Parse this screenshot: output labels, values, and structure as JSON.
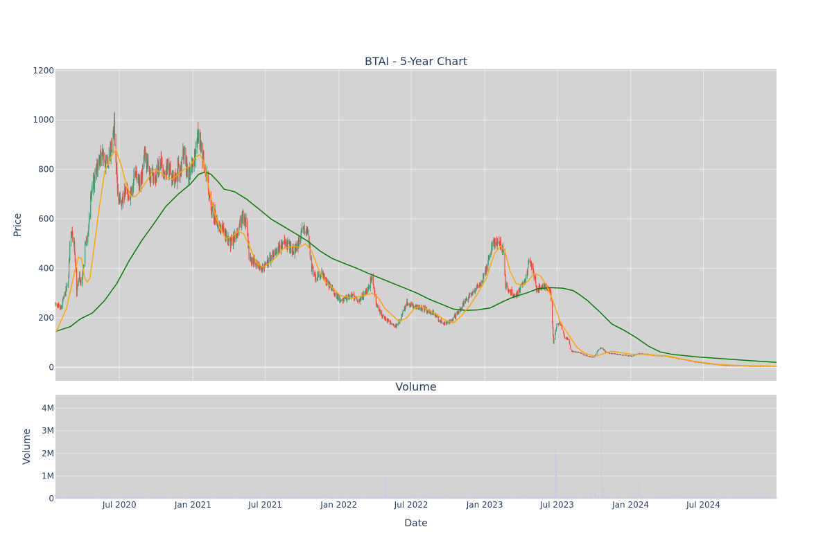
{
  "colors": {
    "plot_bg": "#d3d3d3",
    "grid": "#ebebeb",
    "text": "#2a3f5f",
    "candle_up": "#3d9970",
    "candle_down": "#ff4136",
    "ma_short": "#ffa500",
    "ma_long": "#008000",
    "volume_bar": "#c6c6ee"
  },
  "chart_data": [
    {
      "type": "candlestick",
      "title": "BTAI - 5-Year Chart",
      "ylabel": "Price",
      "ylim": [
        -55,
        1205
      ],
      "yticks": [
        0,
        200,
        400,
        600,
        800,
        1000,
        1200
      ],
      "xlim": [
        "2020-01-23",
        "2024-12-31"
      ],
      "grid": true,
      "close_anchors": [
        [
          "2020-01-24",
          255
        ],
        [
          "2020-02-06",
          240
        ],
        [
          "2020-02-14",
          290
        ],
        [
          "2020-02-24",
          340
        ],
        [
          "2020-03-01",
          560
        ],
        [
          "2020-03-10",
          500
        ],
        [
          "2020-03-16",
          300
        ],
        [
          "2020-03-22",
          380
        ],
        [
          "2020-03-28",
          330
        ],
        [
          "2020-04-06",
          480
        ],
        [
          "2020-04-14",
          560
        ],
        [
          "2020-04-22",
          720
        ],
        [
          "2020-05-02",
          780
        ],
        [
          "2020-05-12",
          840
        ],
        [
          "2020-05-22",
          860
        ],
        [
          "2020-06-01",
          820
        ],
        [
          "2020-06-10",
          880
        ],
        [
          "2020-06-18",
          980
        ],
        [
          "2020-06-26",
          720
        ],
        [
          "2020-07-06",
          650
        ],
        [
          "2020-07-18",
          720
        ],
        [
          "2020-07-28",
          690
        ],
        [
          "2020-08-10",
          780
        ],
        [
          "2020-08-22",
          730
        ],
        [
          "2020-09-03",
          860
        ],
        [
          "2020-09-15",
          780
        ],
        [
          "2020-09-28",
          760
        ],
        [
          "2020-10-10",
          830
        ],
        [
          "2020-10-22",
          790
        ],
        [
          "2020-11-03",
          800
        ],
        [
          "2020-11-15",
          760
        ],
        [
          "2020-12-01",
          820
        ],
        [
          "2020-12-10",
          860
        ],
        [
          "2020-12-20",
          780
        ],
        [
          "2021-01-08",
          860
        ],
        [
          "2021-01-15",
          980
        ],
        [
          "2021-01-20",
          900
        ],
        [
          "2021-01-27",
          820
        ],
        [
          "2021-02-06",
          760
        ],
        [
          "2021-02-15",
          640
        ],
        [
          "2021-02-24",
          620
        ],
        [
          "2021-03-05",
          580
        ],
        [
          "2021-03-20",
          550
        ],
        [
          "2021-04-05",
          500
        ],
        [
          "2021-04-20",
          540
        ],
        [
          "2021-05-05",
          600
        ],
        [
          "2021-05-14",
          590
        ],
        [
          "2021-05-22",
          440
        ],
        [
          "2021-06-10",
          420
        ],
        [
          "2021-06-25",
          400
        ],
        [
          "2021-07-10",
          430
        ],
        [
          "2021-07-25",
          470
        ],
        [
          "2021-08-10",
          490
        ],
        [
          "2021-08-25",
          500
        ],
        [
          "2021-09-10",
          470
        ],
        [
          "2021-09-22",
          500
        ],
        [
          "2021-10-03",
          560
        ],
        [
          "2021-10-15",
          560
        ],
        [
          "2021-10-25",
          400
        ],
        [
          "2021-11-05",
          360
        ],
        [
          "2021-11-20",
          380
        ],
        [
          "2021-12-05",
          340
        ],
        [
          "2021-12-20",
          300
        ],
        [
          "2022-01-05",
          270
        ],
        [
          "2022-01-20",
          280
        ],
        [
          "2022-02-05",
          290
        ],
        [
          "2022-02-20",
          270
        ],
        [
          "2022-03-10",
          300
        ],
        [
          "2022-03-25",
          360
        ],
        [
          "2022-04-05",
          250
        ],
        [
          "2022-04-18",
          210
        ],
        [
          "2022-05-01",
          190
        ],
        [
          "2022-05-15",
          175
        ],
        [
          "2022-05-25",
          165
        ],
        [
          "2022-06-05",
          200
        ],
        [
          "2022-06-20",
          260
        ],
        [
          "2022-07-10",
          250
        ],
        [
          "2022-07-25",
          240
        ],
        [
          "2022-08-10",
          230
        ],
        [
          "2022-08-25",
          220
        ],
        [
          "2022-09-10",
          190
        ],
        [
          "2022-09-25",
          175
        ],
        [
          "2022-10-10",
          190
        ],
        [
          "2022-10-25",
          220
        ],
        [
          "2022-11-10",
          260
        ],
        [
          "2022-11-25",
          290
        ],
        [
          "2022-12-10",
          320
        ],
        [
          "2022-12-25",
          350
        ],
        [
          "2023-01-10",
          430
        ],
        [
          "2023-01-20",
          500
        ],
        [
          "2023-01-30",
          510
        ],
        [
          "2023-02-10",
          490
        ],
        [
          "2023-02-18",
          460
        ],
        [
          "2023-02-22",
          330
        ],
        [
          "2023-03-05",
          310
        ],
        [
          "2023-03-15",
          290
        ],
        [
          "2023-03-25",
          300
        ],
        [
          "2023-04-05",
          340
        ],
        [
          "2023-04-15",
          360
        ],
        [
          "2023-04-22",
          440
        ],
        [
          "2023-05-01",
          400
        ],
        [
          "2023-05-10",
          310
        ],
        [
          "2023-05-20",
          320
        ],
        [
          "2023-05-28",
          330
        ],
        [
          "2023-06-05",
          320
        ],
        [
          "2023-06-15",
          310
        ],
        [
          "2023-06-22",
          100
        ],
        [
          "2023-07-01",
          180
        ],
        [
          "2023-07-10",
          175
        ],
        [
          "2023-07-20",
          120
        ],
        [
          "2023-07-30",
          115
        ],
        [
          "2023-08-05",
          65
        ],
        [
          "2023-08-25",
          60
        ],
        [
          "2023-09-15",
          45
        ],
        [
          "2023-10-01",
          40
        ],
        [
          "2023-10-10",
          65
        ],
        [
          "2023-10-20",
          80
        ],
        [
          "2023-11-01",
          60
        ],
        [
          "2023-11-20",
          55
        ],
        [
          "2023-12-10",
          50
        ],
        [
          "2024-01-05",
          45
        ],
        [
          "2024-01-20",
          55
        ],
        [
          "2024-02-10",
          52
        ],
        [
          "2024-03-01",
          48
        ],
        [
          "2024-04-01",
          45
        ],
        [
          "2024-05-01",
          35
        ],
        [
          "2024-06-01",
          25
        ],
        [
          "2024-07-01",
          18
        ],
        [
          "2024-08-01",
          12
        ],
        [
          "2024-09-01",
          8
        ],
        [
          "2024-10-01",
          7
        ],
        [
          "2024-11-01",
          5
        ],
        [
          "2024-12-31",
          5
        ]
      ],
      "ma_short_anchors": [
        [
          "2020-01-24",
          140
        ],
        [
          "2020-02-20",
          240
        ],
        [
          "2020-03-10",
          380
        ],
        [
          "2020-03-20",
          445
        ],
        [
          "2020-03-28",
          440
        ],
        [
          "2020-04-05",
          360
        ],
        [
          "2020-04-12",
          345
        ],
        [
          "2020-04-18",
          360
        ],
        [
          "2020-04-30",
          500
        ],
        [
          "2020-05-12",
          650
        ],
        [
          "2020-05-25",
          790
        ],
        [
          "2020-06-10",
          850
        ],
        [
          "2020-06-22",
          880
        ],
        [
          "2020-07-05",
          820
        ],
        [
          "2020-07-18",
          740
        ],
        [
          "2020-07-30",
          690
        ],
        [
          "2020-08-10",
          690
        ],
        [
          "2020-08-25",
          720
        ],
        [
          "2020-09-10",
          760
        ],
        [
          "2020-09-25",
          800
        ],
        [
          "2020-10-10",
          790
        ],
        [
          "2020-10-25",
          770
        ],
        [
          "2020-11-10",
          760
        ],
        [
          "2020-11-25",
          780
        ],
        [
          "2020-12-10",
          800
        ],
        [
          "2020-12-25",
          815
        ],
        [
          "2021-01-08",
          850
        ],
        [
          "2021-01-18",
          860
        ],
        [
          "2021-01-28",
          830
        ],
        [
          "2021-02-10",
          720
        ],
        [
          "2021-02-25",
          620
        ],
        [
          "2021-03-10",
          560
        ],
        [
          "2021-03-25",
          520
        ],
        [
          "2021-04-10",
          530
        ],
        [
          "2021-04-25",
          550
        ],
        [
          "2021-05-08",
          540
        ],
        [
          "2021-05-25",
          480
        ],
        [
          "2021-06-10",
          420
        ],
        [
          "2021-06-25",
          405
        ],
        [
          "2021-07-10",
          420
        ],
        [
          "2021-07-25",
          440
        ],
        [
          "2021-08-15",
          480
        ],
        [
          "2021-09-10",
          490
        ],
        [
          "2021-09-25",
          485
        ],
        [
          "2021-10-10",
          500
        ],
        [
          "2021-10-25",
          470
        ],
        [
          "2021-11-10",
          400
        ],
        [
          "2021-11-25",
          350
        ],
        [
          "2021-12-10",
          330
        ],
        [
          "2022-01-05",
          290
        ],
        [
          "2022-02-05",
          280
        ],
        [
          "2022-03-05",
          290
        ],
        [
          "2022-03-25",
          300
        ],
        [
          "2022-04-10",
          280
        ],
        [
          "2022-04-25",
          240
        ],
        [
          "2022-05-15",
          210
        ],
        [
          "2022-06-01",
          185
        ],
        [
          "2022-06-20",
          200
        ],
        [
          "2022-07-10",
          240
        ],
        [
          "2022-07-25",
          245
        ],
        [
          "2022-08-10",
          235
        ],
        [
          "2022-09-05",
          210
        ],
        [
          "2022-09-25",
          190
        ],
        [
          "2022-10-15",
          180
        ],
        [
          "2022-11-05",
          210
        ],
        [
          "2022-11-25",
          250
        ],
        [
          "2022-12-15",
          300
        ],
        [
          "2023-01-05",
          360
        ],
        [
          "2023-01-25",
          460
        ],
        [
          "2023-02-10",
          490
        ],
        [
          "2023-02-20",
          470
        ],
        [
          "2023-03-05",
          390
        ],
        [
          "2023-03-20",
          340
        ],
        [
          "2023-04-05",
          330
        ],
        [
          "2023-04-20",
          350
        ],
        [
          "2023-05-05",
          380
        ],
        [
          "2023-05-20",
          370
        ],
        [
          "2023-06-05",
          330
        ],
        [
          "2023-06-20",
          270
        ],
        [
          "2023-07-10",
          180
        ],
        [
          "2023-07-30",
          130
        ],
        [
          "2023-08-20",
          80
        ],
        [
          "2023-09-10",
          55
        ],
        [
          "2023-10-05",
          45
        ],
        [
          "2023-10-25",
          55
        ],
        [
          "2023-11-15",
          65
        ],
        [
          "2023-12-05",
          60
        ],
        [
          "2024-01-05",
          52
        ],
        [
          "2024-02-05",
          52
        ],
        [
          "2024-03-05",
          48
        ],
        [
          "2024-04-05",
          45
        ],
        [
          "2024-05-05",
          35
        ],
        [
          "2024-06-05",
          25
        ],
        [
          "2024-07-05",
          18
        ],
        [
          "2024-08-05",
          12
        ],
        [
          "2024-09-05",
          9
        ],
        [
          "2024-10-05",
          7
        ],
        [
          "2024-11-05",
          6
        ],
        [
          "2024-12-31",
          5
        ]
      ],
      "ma_long_anchors": [
        [
          "2020-01-24",
          145
        ],
        [
          "2020-03-01",
          165
        ],
        [
          "2020-03-25",
          195
        ],
        [
          "2020-04-25",
          220
        ],
        [
          "2020-05-25",
          270
        ],
        [
          "2020-06-25",
          340
        ],
        [
          "2020-07-25",
          430
        ],
        [
          "2020-08-25",
          510
        ],
        [
          "2020-09-25",
          580
        ],
        [
          "2020-10-25",
          650
        ],
        [
          "2020-11-25",
          700
        ],
        [
          "2020-12-25",
          740
        ],
        [
          "2021-01-15",
          780
        ],
        [
          "2021-02-01",
          790
        ],
        [
          "2021-02-15",
          780
        ],
        [
          "2021-03-05",
          750
        ],
        [
          "2021-03-20",
          720
        ],
        [
          "2021-04-15",
          710
        ],
        [
          "2021-05-15",
          680
        ],
        [
          "2021-06-15",
          640
        ],
        [
          "2021-07-15",
          600
        ],
        [
          "2021-08-15",
          570
        ],
        [
          "2021-09-15",
          540
        ],
        [
          "2021-10-15",
          510
        ],
        [
          "2021-11-15",
          470
        ],
        [
          "2021-12-15",
          440
        ],
        [
          "2022-01-15",
          420
        ],
        [
          "2022-02-15",
          400
        ],
        [
          "2022-03-15",
          380
        ],
        [
          "2022-04-15",
          360
        ],
        [
          "2022-05-15",
          340
        ],
        [
          "2022-06-15",
          320
        ],
        [
          "2022-07-15",
          300
        ],
        [
          "2022-08-15",
          275
        ],
        [
          "2022-09-15",
          255
        ],
        [
          "2022-10-15",
          235
        ],
        [
          "2022-11-15",
          230
        ],
        [
          "2022-12-15",
          232
        ],
        [
          "2023-01-15",
          240
        ],
        [
          "2023-02-15",
          265
        ],
        [
          "2023-03-15",
          285
        ],
        [
          "2023-04-15",
          300
        ],
        [
          "2023-05-15",
          318
        ],
        [
          "2023-06-15",
          322
        ],
        [
          "2023-07-15",
          320
        ],
        [
          "2023-08-10",
          310
        ],
        [
          "2023-08-25",
          295
        ],
        [
          "2023-09-15",
          270
        ],
        [
          "2023-10-15",
          225
        ],
        [
          "2023-11-15",
          175
        ],
        [
          "2023-12-15",
          150
        ],
        [
          "2024-01-15",
          120
        ],
        [
          "2024-02-15",
          85
        ],
        [
          "2024-03-15",
          62
        ],
        [
          "2024-04-15",
          52
        ],
        [
          "2024-06-15",
          42
        ],
        [
          "2024-08-15",
          35
        ],
        [
          "2024-10-15",
          28
        ],
        [
          "2024-12-31",
          20
        ]
      ]
    },
    {
      "type": "bar",
      "title": "Volume",
      "xlabel": "Date",
      "ylabel": "Volume",
      "ylim": [
        0,
        4600000
      ],
      "yticks": [
        0,
        1000000,
        2000000,
        3000000,
        4000000
      ],
      "ytick_labels": [
        "0",
        "1M",
        "2M",
        "3M",
        "4M"
      ],
      "xticks": [
        "2020-07-01",
        "2021-01-01",
        "2021-07-01",
        "2022-01-01",
        "2022-07-01",
        "2023-01-01",
        "2023-07-01",
        "2024-01-01",
        "2024-07-01"
      ],
      "xtick_labels": [
        "Jul 2020",
        "Jan 2021",
        "Jul 2021",
        "Jan 2022",
        "Jul 2022",
        "Jan 2023",
        "Jul 2023",
        "Jan 2024",
        "Jul 2024"
      ],
      "base_volume": 70000,
      "spikes": [
        [
          "2020-03-01",
          160000
        ],
        [
          "2022-04-28",
          950000
        ],
        [
          "2023-06-27",
          2200000
        ],
        [
          "2023-06-29",
          1800000
        ],
        [
          "2023-08-05",
          600000
        ],
        [
          "2023-09-25",
          250000
        ],
        [
          "2023-10-05",
          400000
        ],
        [
          "2023-10-20",
          4350000
        ],
        [
          "2023-10-24",
          500000
        ],
        [
          "2023-10-28",
          420000
        ],
        [
          "2024-01-22",
          850000
        ],
        [
          "2024-12-15",
          200000
        ]
      ]
    }
  ]
}
